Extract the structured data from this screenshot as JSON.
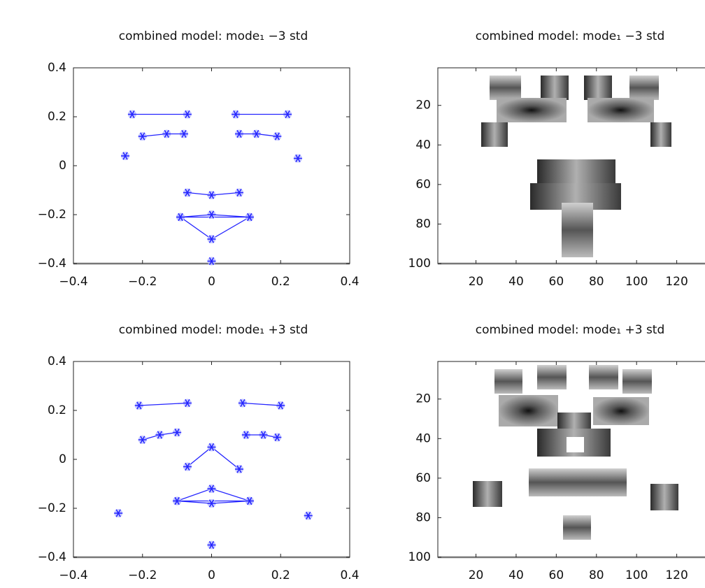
{
  "chart_data": [
    {
      "type": "scatter",
      "title": "combined model: mode₁ −3 std",
      "xlim": [
        -0.4,
        0.4
      ],
      "ylim": [
        -0.4,
        0.4
      ],
      "xticks": [
        {
          "value": -0.4,
          "label": "−0.4"
        },
        {
          "value": -0.2,
          "label": "−0.2"
        },
        0,
        0.2,
        0.4
      ],
      "yticks": [
        {
          "value": -0.4,
          "label": "−0.4"
        },
        {
          "value": -0.2,
          "label": "−0.2"
        },
        0,
        0.2,
        0.4
      ],
      "color": "#2424ff",
      "series": [
        {
          "x": [
            -0.23,
            -0.07
          ],
          "y": [
            0.21,
            0.21
          ],
          "connect": true
        },
        {
          "x": [
            0.07,
            0.22
          ],
          "y": [
            0.21,
            0.21
          ],
          "connect": true
        },
        {
          "x": [
            -0.2,
            -0.13,
            -0.08
          ],
          "y": [
            0.12,
            0.13,
            0.13
          ],
          "connect": true
        },
        {
          "x": [
            0.08,
            0.13,
            0.19
          ],
          "y": [
            0.13,
            0.13,
            0.12
          ],
          "connect": true
        },
        {
          "x": [
            -0.25,
            0.25
          ],
          "y": [
            0.04,
            0.03
          ],
          "connect": false
        },
        {
          "x": [
            -0.07,
            0,
            0.08
          ],
          "y": [
            -0.11,
            -0.12,
            -0.11
          ],
          "connect": true
        },
        {
          "x": [
            -0.09,
            0,
            0.11,
            0,
            -0.09,
            0.11
          ],
          "y": [
            -0.21,
            -0.2,
            -0.21,
            -0.3,
            -0.21,
            -0.21
          ],
          "connect": true
        },
        {
          "x": [
            0
          ],
          "y": [
            -0.39
          ],
          "connect": false
        }
      ]
    },
    {
      "type": "image",
      "title": "combined model: mode₁ −3 std",
      "xlim": [
        1,
        140
      ],
      "ylim": [
        1,
        100
      ],
      "y_inverted": true,
      "xticks": [
        20,
        40,
        60,
        80,
        100,
        120
      ],
      "yticks": [
        20,
        40,
        60,
        80,
        100
      ]
    },
    {
      "type": "scatter",
      "title": "combined model: mode₁ +3 std",
      "xlim": [
        -0.4,
        0.4
      ],
      "ylim": [
        -0.4,
        0.4
      ],
      "xticks": [
        {
          "value": -0.4,
          "label": "−0.4"
        },
        {
          "value": -0.2,
          "label": "−0.2"
        },
        0,
        0.2,
        0.4
      ],
      "yticks": [
        {
          "value": -0.4,
          "label": "−0.4"
        },
        {
          "value": -0.2,
          "label": "−0.2"
        },
        0,
        0.2,
        0.4
      ],
      "color": "#2424ff",
      "series": [
        {
          "x": [
            -0.21,
            -0.07
          ],
          "y": [
            0.22,
            0.23
          ],
          "connect": true
        },
        {
          "x": [
            0.09,
            0.2
          ],
          "y": [
            0.23,
            0.22
          ],
          "connect": true
        },
        {
          "x": [
            -0.2,
            -0.15,
            -0.1
          ],
          "y": [
            0.08,
            0.1,
            0.11
          ],
          "connect": true
        },
        {
          "x": [
            0.1,
            0.15,
            0.19
          ],
          "y": [
            0.1,
            0.1,
            0.09
          ],
          "connect": true
        },
        {
          "x": [
            -0.07,
            0,
            0.08
          ],
          "y": [
            -0.03,
            0.05,
            -0.04
          ],
          "connect": true
        },
        {
          "x": [
            -0.1,
            0,
            0.11,
            0,
            -0.1,
            0.11
          ],
          "y": [
            -0.17,
            -0.12,
            -0.17,
            -0.18,
            -0.17,
            -0.17
          ],
          "connect": true
        },
        {
          "x": [
            -0.27,
            0.28,
            0
          ],
          "y": [
            -0.22,
            -0.23,
            -0.35
          ],
          "connect": false
        }
      ]
    },
    {
      "type": "image",
      "title": "combined model: mode₁ +3 std",
      "xlim": [
        1,
        140
      ],
      "ylim": [
        1,
        100
      ],
      "y_inverted": true,
      "xticks": [
        20,
        40,
        60,
        80,
        100,
        120
      ],
      "yticks": [
        20,
        40,
        60,
        80,
        100
      ]
    }
  ]
}
